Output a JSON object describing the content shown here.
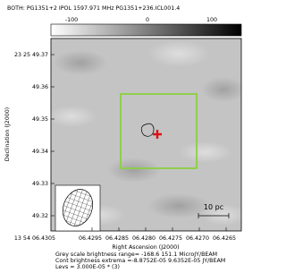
{
  "plot": {
    "title": "BOTH: PG1351+2  IPOL  1597.971 MHz  PG1351+236.ICL001.4",
    "colorbar_ticks": [
      "-100",
      "0",
      "100"
    ],
    "y_tick_labels": [
      "23 25 49.37",
      "49.36",
      "49.35",
      "49.34",
      "49.33",
      "49.32"
    ],
    "x_tick_labels": [
      "13 54 06.4305",
      "06.4295",
      "06.4285",
      "06.4280",
      "06.4275",
      "06.4270",
      "06.4265"
    ],
    "x_label": "Right Ascension (J2000)",
    "y_label": "Declination (J2000)",
    "scale_bar": "10 pc",
    "footer": [
      "Grey scale brightness range= -168.6 151.1 MicroJY/BEAM",
      "Cont brightness extrema =-8.8752E-05 9.6352E-05 JY/BEAM",
      "Levs = 3.000E-05 * (3)"
    ]
  }
}
